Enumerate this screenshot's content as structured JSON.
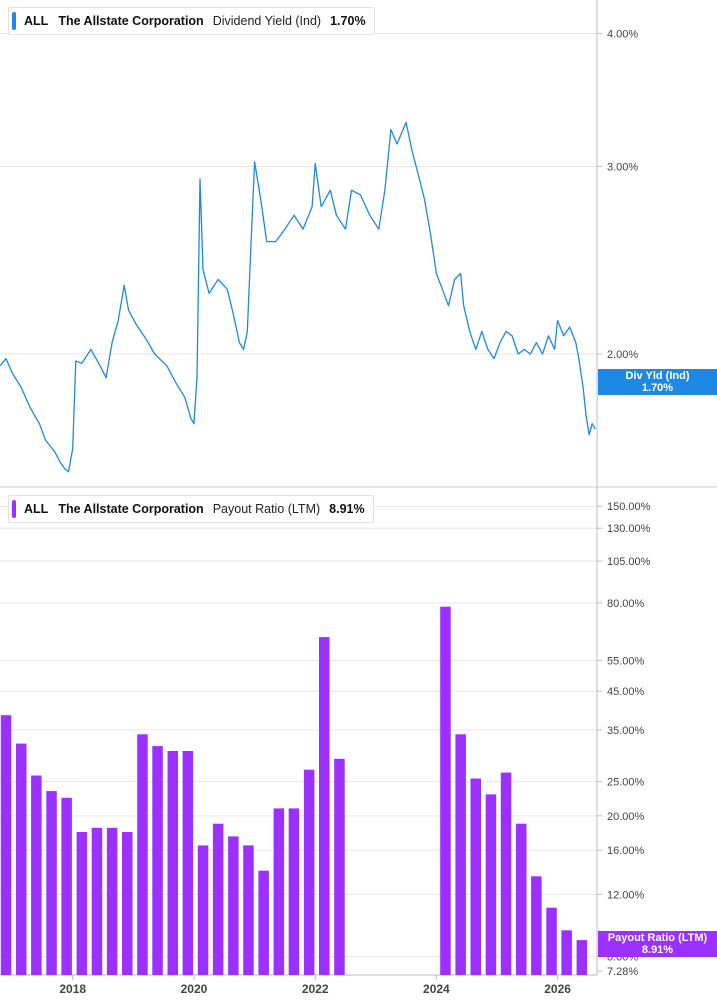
{
  "legends": {
    "top": {
      "ticker": "ALL",
      "company": "The Allstate Corporation",
      "metric": "Dividend Yield (Ind)",
      "value": "1.70%"
    },
    "bottom": {
      "ticker": "ALL",
      "company": "The Allstate Corporation",
      "metric": "Payout Ratio (LTM)",
      "value": "8.91%"
    }
  },
  "tags": {
    "top": {
      "line1": "Div Yld (Ind)",
      "line2": "1.70%"
    },
    "bottom": {
      "line1": "Payout Ratio (LTM)",
      "line2": "8.91%"
    }
  },
  "colors": {
    "yield": "#1e88e5",
    "payout": "#9b30ff",
    "grid": "#e6e6e6",
    "axis": "#bdbdbd"
  },
  "chart_data": [
    {
      "type": "line",
      "title": "Dividend Yield (Ind)",
      "scale": "log",
      "ylim": [
        1.5,
        4.3
      ],
      "xlim": [
        2016.8,
        2026.65
      ],
      "y_tick_labels": [
        {
          "value": 4.0,
          "label": "4.00%"
        },
        {
          "value": 3.0,
          "label": "3.00%"
        },
        {
          "value": 2.0,
          "label": "2.00%"
        }
      ],
      "current_value": 1.7,
      "series": [
        {
          "name": "Div Yld (Ind)",
          "points": [
            [
              2016.8,
              1.95
            ],
            [
              2016.9,
              1.98
            ],
            [
              2017.0,
              1.92
            ],
            [
              2017.15,
              1.86
            ],
            [
              2017.3,
              1.78
            ],
            [
              2017.45,
              1.72
            ],
            [
              2017.55,
              1.66
            ],
            [
              2017.7,
              1.62
            ],
            [
              2017.8,
              1.58
            ],
            [
              2017.87,
              1.56
            ],
            [
              2017.93,
              1.55
            ],
            [
              2018.0,
              1.63
            ],
            [
              2018.05,
              1.97
            ],
            [
              2018.15,
              1.96
            ],
            [
              2018.3,
              2.02
            ],
            [
              2018.45,
              1.95
            ],
            [
              2018.55,
              1.9
            ],
            [
              2018.65,
              2.05
            ],
            [
              2018.75,
              2.15
            ],
            [
              2018.85,
              2.32
            ],
            [
              2018.92,
              2.2
            ],
            [
              2019.05,
              2.13
            ],
            [
              2019.2,
              2.07
            ],
            [
              2019.35,
              2.0
            ],
            [
              2019.55,
              1.95
            ],
            [
              2019.7,
              1.88
            ],
            [
              2019.85,
              1.82
            ],
            [
              2019.95,
              1.74
            ],
            [
              2020.0,
              1.72
            ],
            [
              2020.05,
              1.9
            ],
            [
              2020.1,
              2.92
            ],
            [
              2020.15,
              2.4
            ],
            [
              2020.25,
              2.28
            ],
            [
              2020.4,
              2.35
            ],
            [
              2020.55,
              2.3
            ],
            [
              2020.65,
              2.18
            ],
            [
              2020.75,
              2.05
            ],
            [
              2020.82,
              2.02
            ],
            [
              2020.88,
              2.1
            ],
            [
              2020.95,
              2.6
            ],
            [
              2021.0,
              3.03
            ],
            [
              2021.1,
              2.8
            ],
            [
              2021.2,
              2.55
            ],
            [
              2021.35,
              2.55
            ],
            [
              2021.5,
              2.62
            ],
            [
              2021.65,
              2.7
            ],
            [
              2021.8,
              2.62
            ],
            [
              2021.95,
              2.75
            ],
            [
              2022.0,
              3.02
            ],
            [
              2022.1,
              2.75
            ],
            [
              2022.25,
              2.85
            ],
            [
              2022.35,
              2.7
            ],
            [
              2022.5,
              2.62
            ],
            [
              2022.6,
              2.85
            ],
            [
              2022.75,
              2.82
            ],
            [
              2022.9,
              2.7
            ],
            [
              2023.05,
              2.62
            ],
            [
              2023.15,
              2.85
            ],
            [
              2023.25,
              3.25
            ],
            [
              2023.35,
              3.15
            ],
            [
              2023.5,
              3.3
            ],
            [
              2023.6,
              3.1
            ],
            [
              2023.7,
              2.95
            ],
            [
              2023.8,
              2.8
            ],
            [
              2023.9,
              2.6
            ],
            [
              2024.0,
              2.38
            ],
            [
              2024.1,
              2.3
            ],
            [
              2024.2,
              2.22
            ],
            [
              2024.3,
              2.35
            ],
            [
              2024.4,
              2.38
            ],
            [
              2024.45,
              2.22
            ],
            [
              2024.55,
              2.1
            ],
            [
              2024.65,
              2.02
            ],
            [
              2024.75,
              2.1
            ],
            [
              2024.85,
              2.02
            ],
            [
              2024.95,
              1.98
            ],
            [
              2025.05,
              2.05
            ],
            [
              2025.15,
              2.1
            ],
            [
              2025.25,
              2.08
            ],
            [
              2025.35,
              2.0
            ],
            [
              2025.45,
              2.02
            ],
            [
              2025.55,
              2.0
            ],
            [
              2025.65,
              2.05
            ],
            [
              2025.75,
              2.0
            ],
            [
              2025.85,
              2.08
            ],
            [
              2025.95,
              2.02
            ],
            [
              2026.0,
              2.15
            ],
            [
              2026.1,
              2.08
            ],
            [
              2026.2,
              2.12
            ],
            [
              2026.3,
              2.05
            ],
            [
              2026.35,
              1.98
            ],
            [
              2026.42,
              1.86
            ],
            [
              2026.47,
              1.75
            ],
            [
              2026.52,
              1.68
            ],
            [
              2026.57,
              1.72
            ],
            [
              2026.62,
              1.7
            ]
          ]
        }
      ]
    },
    {
      "type": "bar",
      "title": "Payout Ratio (LTM)",
      "scale": "log",
      "ylim": [
        7.1,
        170
      ],
      "xlim": [
        2016.8,
        2026.65
      ],
      "y_tick_labels": [
        {
          "value": 150,
          "label": "150.00%"
        },
        {
          "value": 130,
          "label": "130.00%"
        },
        {
          "value": 105,
          "label": "105.00%"
        },
        {
          "value": 80,
          "label": "80.00%"
        },
        {
          "value": 55,
          "label": "55.00%"
        },
        {
          "value": 45,
          "label": "45.00%"
        },
        {
          "value": 35,
          "label": "35.00%"
        },
        {
          "value": 25,
          "label": "25.00%"
        },
        {
          "value": 20,
          "label": "20.00%"
        },
        {
          "value": 16,
          "label": "16.00%"
        },
        {
          "value": 12,
          "label": "12.00%"
        },
        {
          "value": 8,
          "label": "8.00%"
        },
        {
          "value": 7.28,
          "label": "7.28%"
        }
      ],
      "x_tick_labels": [
        {
          "value": 2018,
          "label": "2018"
        },
        {
          "value": 2020,
          "label": "2020"
        },
        {
          "value": 2022,
          "label": "2022"
        },
        {
          "value": 2024,
          "label": "2024"
        },
        {
          "value": 2026,
          "label": "2026"
        }
      ],
      "current_value": 8.91,
      "series": [
        {
          "name": "Payout Ratio (LTM)",
          "x": [
            2016.9,
            2017.15,
            2017.4,
            2017.65,
            2017.9,
            2018.15,
            2018.4,
            2018.65,
            2018.9,
            2019.15,
            2019.4,
            2019.65,
            2019.9,
            2020.15,
            2020.4,
            2020.65,
            2020.9,
            2021.15,
            2021.4,
            2021.65,
            2021.9,
            2022.15,
            2022.4,
            2024.15,
            2024.4,
            2024.65,
            2024.9,
            2025.15,
            2025.4,
            2025.65,
            2025.9,
            2026.15,
            2026.4
          ],
          "values": [
            38.5,
            32.0,
            26.0,
            23.5,
            22.5,
            18.0,
            18.5,
            18.5,
            18.0,
            34.0,
            31.5,
            30.5,
            30.5,
            16.5,
            19.0,
            17.5,
            16.5,
            14.0,
            21.0,
            21.0,
            27.0,
            64.0,
            29.0,
            78.0,
            34.0,
            25.5,
            23.0,
            26.5,
            19.0,
            13.5,
            11.0,
            9.5,
            8.91
          ]
        }
      ]
    }
  ]
}
